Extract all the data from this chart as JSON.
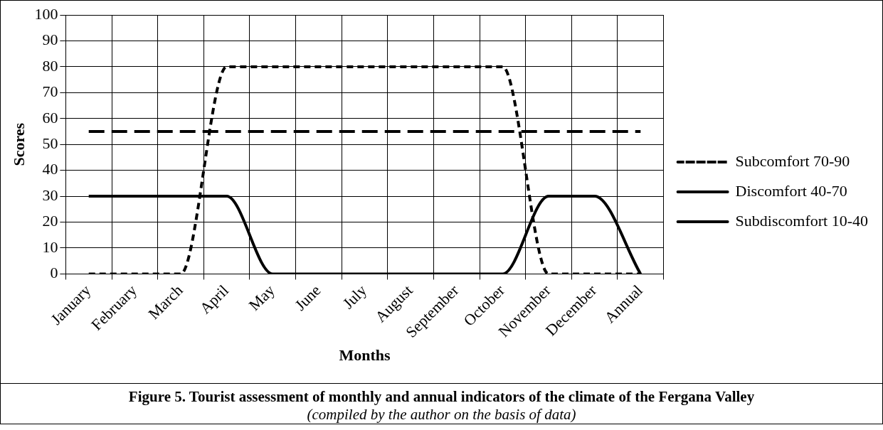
{
  "chart_data": {
    "type": "line",
    "title": "Figure 5. Tourist assessment of monthly and annual indicators of the climate of the Fergana Valley",
    "annotations": [
      "(compiled by the author on the basis of data)"
    ],
    "xlabel": "Months",
    "ylabel": "Scores",
    "categories": [
      "January",
      "February",
      "March",
      "April",
      "May",
      "June",
      "July",
      "August",
      "September",
      "October",
      "November",
      "December",
      "Annual"
    ],
    "series": [
      {
        "name": "Subcomfort 70-90",
        "color": "#000000",
        "line_style": "dotted",
        "values": [
          0,
          0,
          0,
          80,
          80,
          80,
          80,
          80,
          80,
          80,
          0,
          0,
          0
        ]
      },
      {
        "name": "Discomfort 40-70",
        "color": "#000000",
        "line_style": "dashed",
        "values": [
          55,
          55,
          55,
          55,
          55,
          55,
          55,
          55,
          55,
          55,
          55,
          55,
          55
        ]
      },
      {
        "name": "Subdiscomfort 10-40",
        "color": "#000000",
        "line_style": "solid",
        "values": [
          30,
          30,
          30,
          30,
          0,
          0,
          0,
          0,
          0,
          0,
          30,
          30,
          0
        ]
      }
    ],
    "ylim": [
      0,
      100
    ],
    "yticks": [
      0,
      10,
      20,
      30,
      40,
      50,
      60,
      70,
      80,
      90,
      100
    ],
    "grid": true,
    "legend": "right",
    "marker": "none"
  }
}
